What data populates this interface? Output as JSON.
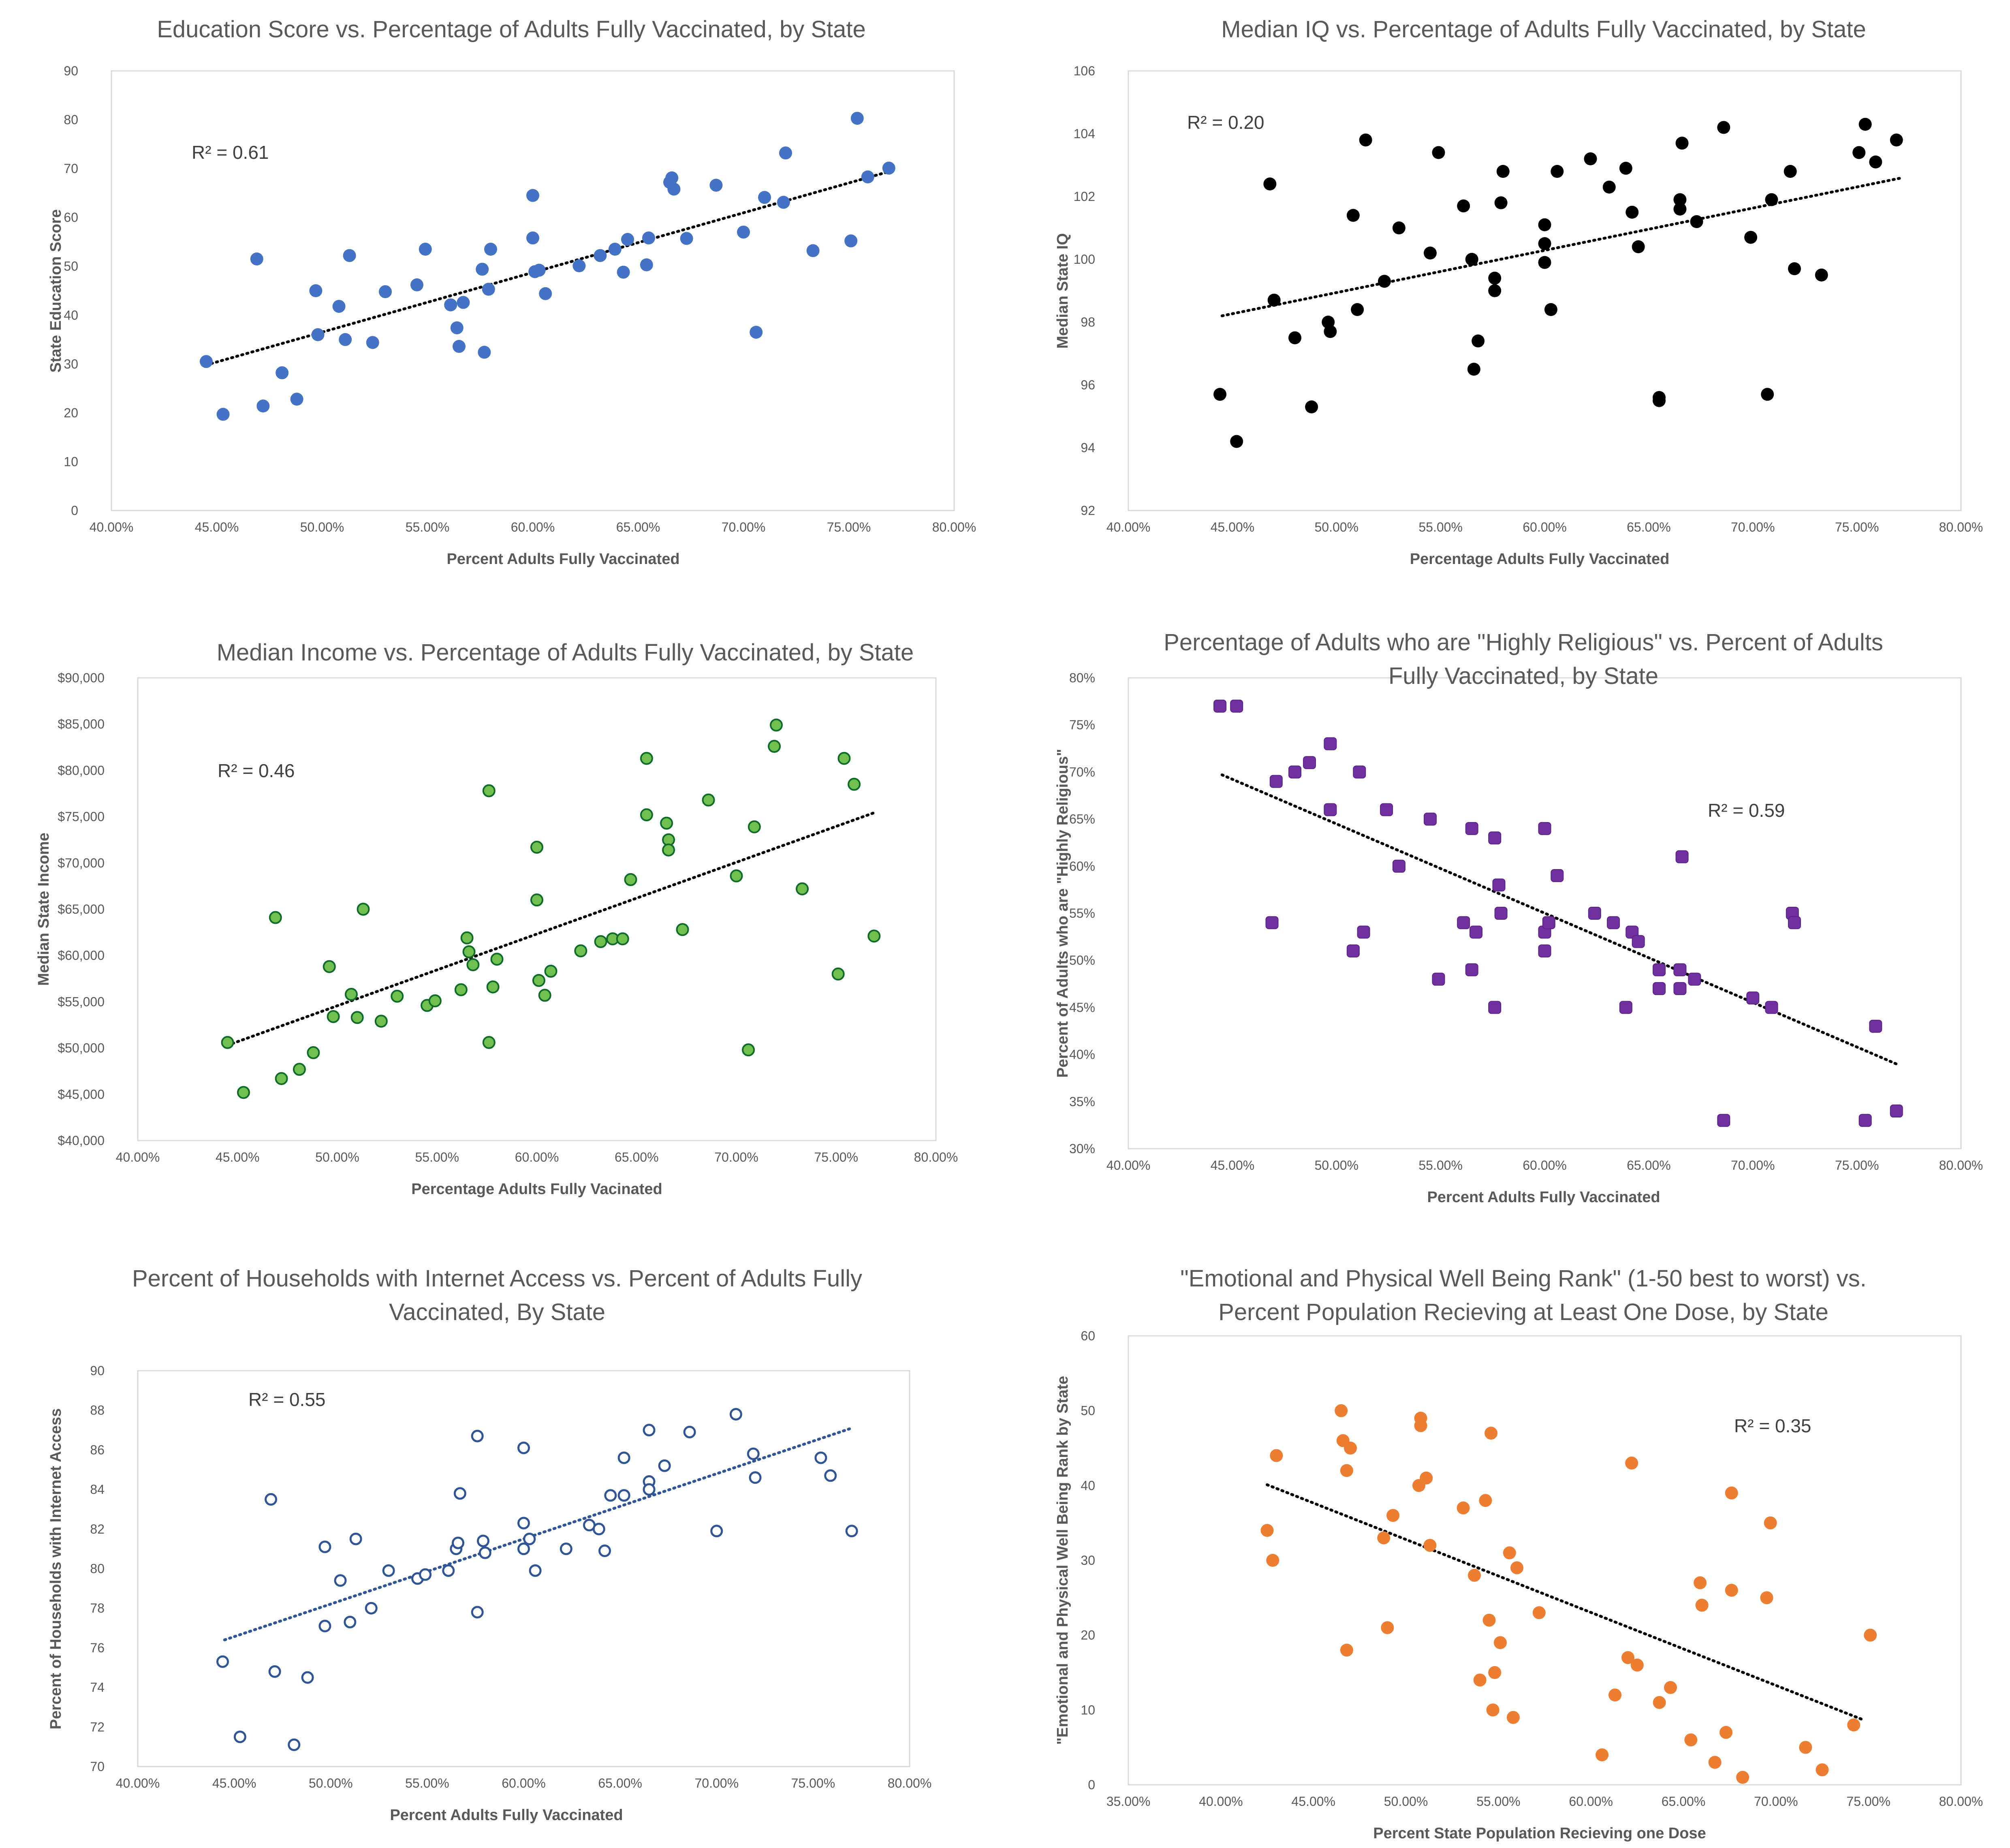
{
  "chart_data": [
    {
      "type": "scatter",
      "title": [
        "Education Score vs. Percentage of Adults Fully Vaccinated, by State"
      ],
      "xlabel": "Percent Adults Fully Vaccinated",
      "ylabel": "State Education Score",
      "xlim": [
        0.4,
        0.8
      ],
      "xstep": 0.05,
      "ylim": [
        0,
        90
      ],
      "ystep": 10,
      "ytick_format": "int",
      "annotation": "R² = 0.61",
      "marker": "filled-circle",
      "color": "#4472c4",
      "trendline_color": "#000000",
      "trendline": [
        [
          0.445,
          29.8
        ],
        [
          0.77,
          69.5
        ]
      ],
      "points": [
        [
          0.445,
          30.5
        ],
        [
          0.453,
          19.7
        ],
        [
          0.469,
          51.5
        ],
        [
          0.472,
          21.4
        ],
        [
          0.481,
          28.2
        ],
        [
          0.488,
          22.8
        ],
        [
          0.497,
          45
        ],
        [
          0.498,
          36
        ],
        [
          0.508,
          41.8
        ],
        [
          0.511,
          35
        ],
        [
          0.513,
          52.2
        ],
        [
          0.524,
          34.4
        ],
        [
          0.53,
          44.8
        ],
        [
          0.545,
          46.2
        ],
        [
          0.549,
          53.5
        ],
        [
          0.561,
          42.1
        ],
        [
          0.564,
          37.4
        ],
        [
          0.565,
          33.6
        ],
        [
          0.567,
          42.6
        ],
        [
          0.576,
          49.4
        ],
        [
          0.577,
          32.4
        ],
        [
          0.579,
          45.3
        ],
        [
          0.58,
          53.5
        ],
        [
          0.6,
          55.8
        ],
        [
          0.6,
          64.5
        ],
        [
          0.601,
          48.9
        ],
        [
          0.603,
          49.2
        ],
        [
          0.606,
          44.4
        ],
        [
          0.622,
          50.1
        ],
        [
          0.632,
          52.2
        ],
        [
          0.639,
          53.5
        ],
        [
          0.643,
          48.8
        ],
        [
          0.645,
          55.5
        ],
        [
          0.654,
          50.3
        ],
        [
          0.655,
          55.8
        ],
        [
          0.665,
          67.2
        ],
        [
          0.666,
          68.1
        ],
        [
          0.667,
          65.8
        ],
        [
          0.673,
          55.7
        ],
        [
          0.687,
          66.6
        ],
        [
          0.7,
          57
        ],
        [
          0.706,
          36.5
        ],
        [
          0.71,
          64.1
        ],
        [
          0.719,
          63.1
        ],
        [
          0.72,
          73.2
        ],
        [
          0.733,
          53.2
        ],
        [
          0.751,
          55.2
        ],
        [
          0.754,
          80.3
        ],
        [
          0.759,
          68.3
        ],
        [
          0.769,
          70.1
        ]
      ]
    },
    {
      "type": "scatter",
      "title": [
        "Median IQ vs. Percentage of Adults Fully Vaccinated, by State"
      ],
      "xlabel": "Percentage Adults Fully Vaccinated",
      "ylabel": "Median State IQ",
      "xlim": [
        0.4,
        0.8
      ],
      "xstep": 0.05,
      "ylim": [
        92,
        106
      ],
      "ystep": 2,
      "ytick_format": "int",
      "annotation": "R² = 0.20",
      "marker": "filled-circle",
      "color": "#000000",
      "trendline_color": "#000000",
      "trendline": [
        [
          0.445,
          98.2
        ],
        [
          0.772,
          102.6
        ]
      ],
      "points": [
        [
          0.444,
          95.7
        ],
        [
          0.452,
          94.2
        ],
        [
          0.468,
          102.4
        ],
        [
          0.47,
          98.7
        ],
        [
          0.48,
          97.5
        ],
        [
          0.488,
          95.3
        ],
        [
          0.496,
          98
        ],
        [
          0.497,
          97.7
        ],
        [
          0.508,
          101.4
        ],
        [
          0.51,
          98.4
        ],
        [
          0.514,
          103.8
        ],
        [
          0.523,
          99.3
        ],
        [
          0.53,
          101
        ],
        [
          0.545,
          100.2
        ],
        [
          0.549,
          103.4
        ],
        [
          0.561,
          101.7
        ],
        [
          0.565,
          100
        ],
        [
          0.566,
          96.5
        ],
        [
          0.568,
          97.4
        ],
        [
          0.576,
          99.4
        ],
        [
          0.576,
          99
        ],
        [
          0.579,
          101.8
        ],
        [
          0.58,
          102.8
        ],
        [
          0.6,
          101.1
        ],
        [
          0.6,
          100.5
        ],
        [
          0.6,
          99.9
        ],
        [
          0.603,
          98.4
        ],
        [
          0.606,
          102.8
        ],
        [
          0.622,
          103.2
        ],
        [
          0.631,
          102.3
        ],
        [
          0.639,
          102.9
        ],
        [
          0.642,
          101.5
        ],
        [
          0.645,
          100.4
        ],
        [
          0.655,
          95.6
        ],
        [
          0.655,
          95.5
        ],
        [
          0.665,
          101.9
        ],
        [
          0.665,
          101.6
        ],
        [
          0.666,
          103.7
        ],
        [
          0.673,
          101.2
        ],
        [
          0.686,
          104.2
        ],
        [
          0.699,
          100.7
        ],
        [
          0.707,
          95.7
        ],
        [
          0.709,
          101.9
        ],
        [
          0.718,
          102.8
        ],
        [
          0.72,
          99.7
        ],
        [
          0.733,
          99.5
        ],
        [
          0.751,
          103.4
        ],
        [
          0.754,
          104.3
        ],
        [
          0.759,
          103.1
        ],
        [
          0.769,
          103.8
        ]
      ]
    },
    {
      "type": "scatter",
      "title": [
        "Median Income vs. Percentage of Adults Fully Vaccinated, by State"
      ],
      "xlabel": "Percentage Adults Fully Vacinated",
      "ylabel": "Median State Income",
      "xlim": [
        0.4,
        0.8
      ],
      "xstep": 0.05,
      "ylim": [
        40000,
        90000
      ],
      "ystep": 5000,
      "ytick_format": "currency",
      "annotation": "R² = 0.46",
      "marker": "green-circle",
      "color": "#00b050",
      "trendline_color": "#000000",
      "trendline": [
        [
          0.445,
          50300
        ],
        [
          0.77,
          75500
        ]
      ],
      "points": [
        [
          0.445,
          50600
        ],
        [
          0.453,
          45200
        ],
        [
          0.469,
          64100
        ],
        [
          0.472,
          46700
        ],
        [
          0.481,
          47700
        ],
        [
          0.488,
          49500
        ],
        [
          0.496,
          58800
        ],
        [
          0.498,
          53400
        ],
        [
          0.507,
          55800
        ],
        [
          0.51,
          53300
        ],
        [
          0.513,
          65000
        ],
        [
          0.522,
          52900
        ],
        [
          0.53,
          55600
        ],
        [
          0.545,
          54600
        ],
        [
          0.549,
          55100
        ],
        [
          0.562,
          56300
        ],
        [
          0.565,
          61900
        ],
        [
          0.566,
          60400
        ],
        [
          0.568,
          59000
        ],
        [
          0.576,
          77800
        ],
        [
          0.576,
          50600
        ],
        [
          0.578,
          56600
        ],
        [
          0.58,
          59600
        ],
        [
          0.6,
          71700
        ],
        [
          0.6,
          66000
        ],
        [
          0.601,
          57300
        ],
        [
          0.604,
          55700
        ],
        [
          0.607,
          58300
        ],
        [
          0.622,
          60500
        ],
        [
          0.632,
          61500
        ],
        [
          0.638,
          61800
        ],
        [
          0.643,
          61800
        ],
        [
          0.647,
          68200
        ],
        [
          0.655,
          81300
        ],
        [
          0.655,
          75200
        ],
        [
          0.665,
          74300
        ],
        [
          0.666,
          72500
        ],
        [
          0.666,
          71400
        ],
        [
          0.673,
          62800
        ],
        [
          0.686,
          76800
        ],
        [
          0.7,
          68600
        ],
        [
          0.706,
          49800
        ],
        [
          0.709,
          73900
        ],
        [
          0.719,
          82600
        ],
        [
          0.72,
          84900
        ],
        [
          0.733,
          67200
        ],
        [
          0.751,
          58000
        ],
        [
          0.754,
          81300
        ],
        [
          0.759,
          78500
        ],
        [
          0.769,
          62100
        ]
      ]
    },
    {
      "type": "scatter",
      "title": [
        "Percentage of Adults who are \"Highly Religious\" vs. Percent of Adults",
        "Fully Vaccinated, by State"
      ],
      "xlabel": "Percent Adults Fully Vaccinated",
      "ylabel": "Percent of Adults who are \"Highly Religious\"",
      "xlim": [
        0.4,
        0.8
      ],
      "xstep": 0.05,
      "ylim": [
        0.3,
        0.8
      ],
      "ystep": 0.05,
      "ytick_format": "percent0",
      "annotation": "R² = 0.59",
      "marker": "rounded-square",
      "color": "#7030a0",
      "trendline_color": "#000000",
      "trendline": [
        [
          0.445,
          0.697
        ],
        [
          0.77,
          0.389
        ]
      ],
      "points": [
        [
          0.444,
          0.77
        ],
        [
          0.452,
          0.77
        ],
        [
          0.469,
          0.54
        ],
        [
          0.471,
          0.69
        ],
        [
          0.48,
          0.7
        ],
        [
          0.487,
          0.71
        ],
        [
          0.497,
          0.73
        ],
        [
          0.497,
          0.66
        ],
        [
          0.508,
          0.51
        ],
        [
          0.511,
          0.7
        ],
        [
          0.513,
          0.53
        ],
        [
          0.524,
          0.66
        ],
        [
          0.53,
          0.6
        ],
        [
          0.545,
          0.65
        ],
        [
          0.549,
          0.48
        ],
        [
          0.561,
          0.54
        ],
        [
          0.565,
          0.64
        ],
        [
          0.565,
          0.49
        ],
        [
          0.567,
          0.53
        ],
        [
          0.576,
          0.63
        ],
        [
          0.576,
          0.45
        ],
        [
          0.578,
          0.58
        ],
        [
          0.579,
          0.55
        ],
        [
          0.6,
          0.64
        ],
        [
          0.6,
          0.53
        ],
        [
          0.6,
          0.51
        ],
        [
          0.602,
          0.54
        ],
        [
          0.606,
          0.59
        ],
        [
          0.624,
          0.55
        ],
        [
          0.633,
          0.54
        ],
        [
          0.639,
          0.45
        ],
        [
          0.642,
          0.53
        ],
        [
          0.645,
          0.52
        ],
        [
          0.655,
          0.49
        ],
        [
          0.655,
          0.47
        ],
        [
          0.665,
          0.49
        ],
        [
          0.665,
          0.47
        ],
        [
          0.666,
          0.61
        ],
        [
          0.672,
          0.48
        ],
        [
          0.686,
          0.33
        ],
        [
          0.7,
          0.46
        ],
        [
          0.709,
          0.45
        ],
        [
          0.719,
          0.55
        ],
        [
          0.72,
          0.54
        ],
        [
          0.754,
          0.33
        ],
        [
          0.759,
          0.43
        ],
        [
          0.769,
          0.34
        ]
      ]
    },
    {
      "type": "scatter",
      "title": [
        "Percent of Households with Internet Access vs. Percent of Adults Fully",
        "Vaccinated, By State"
      ],
      "xlabel": "Percent Adults Fully Vaccinated",
      "ylabel": "Percent of Households with Internet Access",
      "xlim": [
        0.4,
        0.8
      ],
      "xstep": 0.05,
      "ylim": [
        70,
        90
      ],
      "ystep": 2,
      "ytick_format": "int",
      "annotation": "R² = 0.55",
      "marker": "hollow-circle",
      "color": "#2f5597",
      "trendline_color": "#2f5597",
      "trendline": [
        [
          0.445,
          76.4
        ],
        [
          0.77,
          87.1
        ]
      ],
      "points": [
        [
          0.444,
          75.3
        ],
        [
          0.453,
          71.5
        ],
        [
          0.469,
          83.5
        ],
        [
          0.471,
          74.8
        ],
        [
          0.481,
          71.1
        ],
        [
          0.488,
          74.5
        ],
        [
          0.497,
          81.1
        ],
        [
          0.497,
          77.1
        ],
        [
          0.505,
          79.4
        ],
        [
          0.51,
          77.3
        ],
        [
          0.513,
          81.5
        ],
        [
          0.521,
          78
        ],
        [
          0.53,
          79.9
        ],
        [
          0.545,
          79.5
        ],
        [
          0.549,
          79.7
        ],
        [
          0.561,
          79.9
        ],
        [
          0.565,
          81
        ],
        [
          0.566,
          81.3
        ],
        [
          0.567,
          83.8
        ],
        [
          0.576,
          86.7
        ],
        [
          0.576,
          77.8
        ],
        [
          0.579,
          81.4
        ],
        [
          0.58,
          80.8
        ],
        [
          0.6,
          86.1
        ],
        [
          0.6,
          82.3
        ],
        [
          0.6,
          81
        ],
        [
          0.603,
          81.5
        ],
        [
          0.606,
          79.9
        ],
        [
          0.622,
          81
        ],
        [
          0.634,
          82.2
        ],
        [
          0.639,
          82
        ],
        [
          0.642,
          80.9
        ],
        [
          0.645,
          83.7
        ],
        [
          0.652,
          85.6
        ],
        [
          0.652,
          83.7
        ],
        [
          0.665,
          87
        ],
        [
          0.665,
          84.4
        ],
        [
          0.665,
          84
        ],
        [
          0.673,
          85.2
        ],
        [
          0.686,
          86.9
        ],
        [
          0.7,
          81.9
        ],
        [
          0.71,
          87.8
        ],
        [
          0.719,
          85.8
        ],
        [
          0.72,
          84.6
        ],
        [
          0.754,
          85.6
        ],
        [
          0.759,
          84.7
        ],
        [
          0.77,
          81.9
        ]
      ]
    },
    {
      "type": "scatter",
      "title": [
        "\"Emotional and Physical Well Being Rank\" (1-50 best to worst) vs.",
        "Percent Population Recieving at Least One Dose, by State"
      ],
      "xlabel": "Percent State Population Recieving one Dose",
      "ylabel": "\"Emotional and Physical Well Being Rank by State",
      "xlim": [
        0.35,
        0.8
      ],
      "xstep": 0.05,
      "ylim": [
        0,
        60
      ],
      "ystep": 10,
      "ytick_format": "int",
      "annotation": "R² = 0.35",
      "marker": "filled-circle",
      "color": "#ed7d31",
      "trendline_color": "#000000",
      "trendline": [
        [
          0.425,
          40.1
        ],
        [
          0.748,
          8.6
        ]
      ],
      "points": [
        [
          0.425,
          34
        ],
        [
          0.428,
          30
        ],
        [
          0.43,
          44
        ],
        [
          0.465,
          50
        ],
        [
          0.466,
          46
        ],
        [
          0.468,
          42
        ],
        [
          0.468,
          18
        ],
        [
          0.47,
          45
        ],
        [
          0.488,
          33
        ],
        [
          0.49,
          21
        ],
        [
          0.493,
          36
        ],
        [
          0.507,
          40
        ],
        [
          0.508,
          48
        ],
        [
          0.508,
          49
        ],
        [
          0.511,
          41
        ],
        [
          0.513,
          32
        ],
        [
          0.531,
          37
        ],
        [
          0.537,
          28
        ],
        [
          0.54,
          14
        ],
        [
          0.543,
          38
        ],
        [
          0.545,
          22
        ],
        [
          0.546,
          47
        ],
        [
          0.547,
          10
        ],
        [
          0.548,
          15
        ],
        [
          0.551,
          19
        ],
        [
          0.556,
          31
        ],
        [
          0.558,
          9
        ],
        [
          0.56,
          29
        ],
        [
          0.572,
          23
        ],
        [
          0.606,
          4
        ],
        [
          0.613,
          12
        ],
        [
          0.62,
          17
        ],
        [
          0.622,
          43
        ],
        [
          0.625,
          16
        ],
        [
          0.637,
          11
        ],
        [
          0.643,
          13
        ],
        [
          0.654,
          6
        ],
        [
          0.659,
          27
        ],
        [
          0.66,
          24
        ],
        [
          0.667,
          3
        ],
        [
          0.673,
          7
        ],
        [
          0.676,
          39
        ],
        [
          0.676,
          26
        ],
        [
          0.682,
          1
        ],
        [
          0.695,
          25
        ],
        [
          0.697,
          35
        ],
        [
          0.716,
          5
        ],
        [
          0.725,
          2
        ],
        [
          0.742,
          8
        ],
        [
          0.751,
          20
        ]
      ]
    }
  ]
}
